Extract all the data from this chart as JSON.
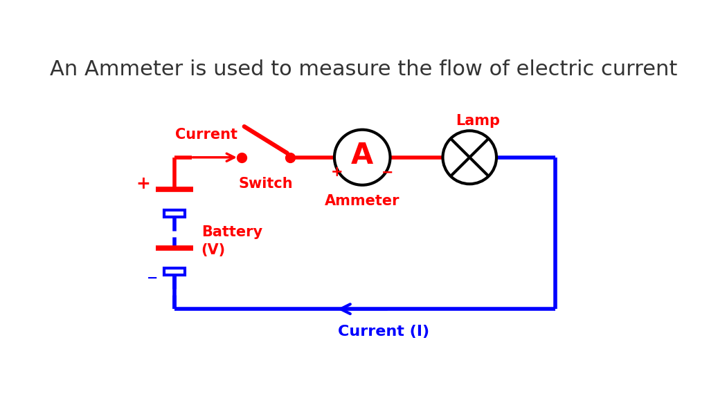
{
  "title": "An Ammeter is used to measure the flow of electric current",
  "title_fontsize": 22,
  "title_color": "#333333",
  "bg_color": "#ffffff",
  "red": "#ff0000",
  "blue": "#0000ff",
  "black": "#000000",
  "lw": 4.0,
  "label_current": "Current",
  "label_switch": "Switch",
  "label_ammeter": "Ammeter",
  "label_lamp": "Lamp",
  "label_battery_line1": "Battery",
  "label_battery_line2": "(V)",
  "label_current_i": "Current (I)"
}
